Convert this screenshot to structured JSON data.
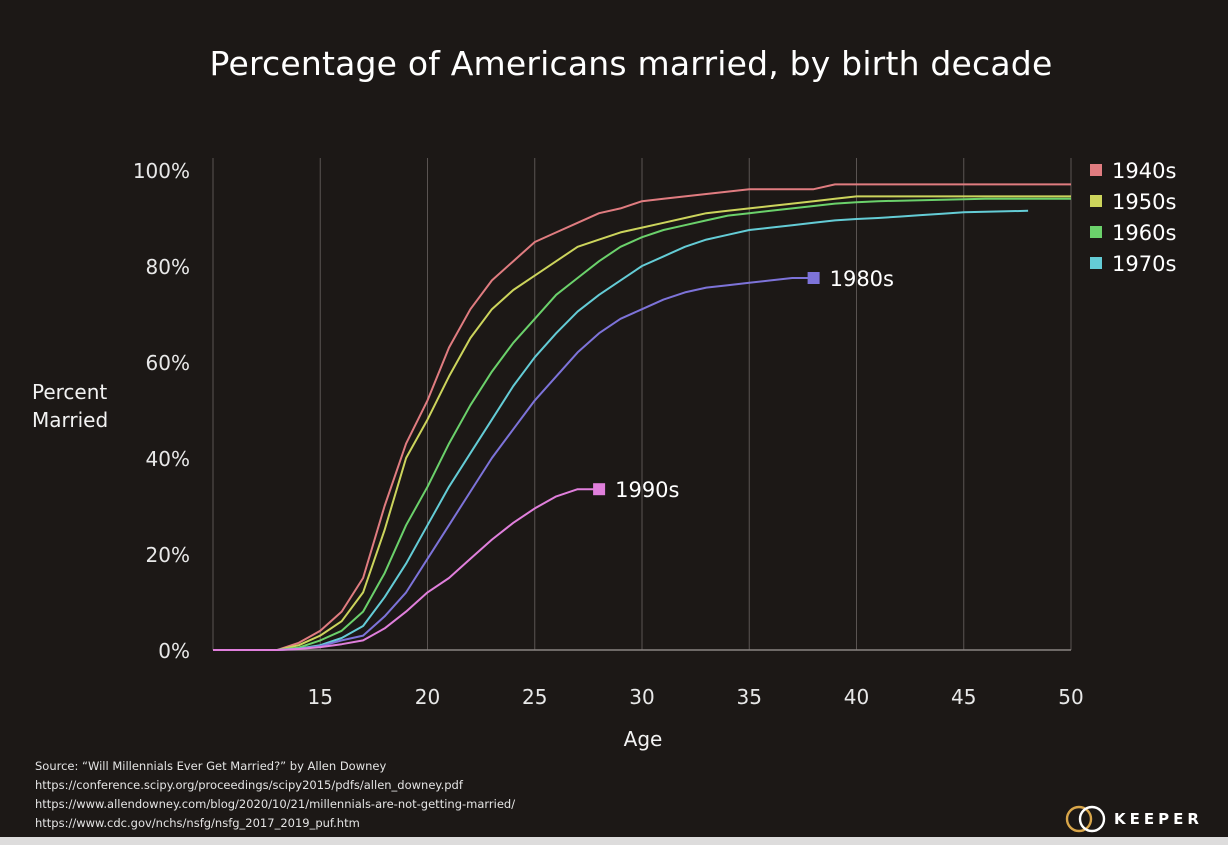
{
  "chart_data": {
    "type": "line",
    "title": "Percentage of Americans married, by birth decade",
    "xlabel": "Age",
    "ylabel": "Percent Married",
    "xlim": [
      10,
      50
    ],
    "ylim": [
      0,
      100
    ],
    "x_ticks": [
      "15",
      "20",
      "25",
      "30",
      "35",
      "40",
      "45",
      "50"
    ],
    "y_ticks": [
      "0%",
      "20%",
      "40%",
      "60%",
      "80%",
      "100%"
    ],
    "grid": "vertical",
    "legend_position": "right",
    "series": [
      {
        "name": "1940s",
        "color": "#e07c80",
        "x": [
          10,
          13,
          14,
          15,
          16,
          17,
          18,
          19,
          20,
          21,
          22,
          23,
          24,
          25,
          26,
          27,
          28,
          29,
          30,
          31,
          32,
          33,
          34,
          35,
          36,
          37,
          38,
          39,
          40,
          41,
          42,
          43,
          44,
          45,
          46,
          47,
          48,
          49,
          50
        ],
        "y": [
          0,
          0,
          1.5,
          4,
          8,
          15,
          30,
          43,
          52,
          63,
          71,
          77,
          81,
          85,
          87,
          89,
          91,
          92,
          93.5,
          94,
          94.5,
          95,
          95.5,
          96,
          96,
          96,
          96,
          97,
          97,
          97,
          97,
          97,
          97,
          97,
          97,
          97,
          97,
          97,
          97
        ]
      },
      {
        "name": "1950s",
        "color": "#ccd45c",
        "x": [
          10,
          13,
          14,
          15,
          16,
          17,
          18,
          19,
          20,
          21,
          22,
          23,
          24,
          25,
          26,
          27,
          28,
          29,
          30,
          31,
          32,
          33,
          34,
          35,
          36,
          37,
          38,
          39,
          40,
          41,
          42,
          43,
          44,
          45,
          46,
          47,
          48,
          49,
          50
        ],
        "y": [
          0,
          0,
          1,
          3,
          6,
          12,
          25,
          40,
          48,
          57,
          65,
          71,
          75,
          78,
          81,
          84,
          85.5,
          87,
          88,
          89,
          90,
          91,
          91.5,
          92,
          92.5,
          93,
          93.5,
          94,
          94.5,
          94.5,
          94.5,
          94.5,
          94.5,
          94.5,
          94.5,
          94.5,
          94.5,
          94.5,
          94.5
        ]
      },
      {
        "name": "1960s",
        "color": "#6bd16b",
        "x": [
          10,
          13,
          14,
          15,
          16,
          17,
          18,
          19,
          20,
          21,
          22,
          23,
          24,
          25,
          26,
          27,
          28,
          29,
          30,
          31,
          32,
          33,
          34,
          35,
          36,
          37,
          38,
          39,
          40,
          41,
          42,
          43,
          44,
          45,
          46,
          47,
          48,
          49,
          50
        ],
        "y": [
          0,
          0,
          0.5,
          2,
          4,
          8,
          16,
          26,
          34,
          43,
          51,
          58,
          64,
          69,
          74,
          77.5,
          81,
          84,
          86,
          87.5,
          88.5,
          89.5,
          90.5,
          91,
          91.5,
          92,
          92.5,
          93,
          93.3,
          93.5,
          93.6,
          93.7,
          93.8,
          93.9,
          94,
          94,
          94,
          94,
          94
        ]
      },
      {
        "name": "1970s",
        "color": "#64ccd6",
        "x": [
          10,
          13,
          14,
          15,
          16,
          17,
          18,
          19,
          20,
          21,
          22,
          23,
          24,
          25,
          26,
          27,
          28,
          29,
          30,
          31,
          32,
          33,
          34,
          35,
          36,
          37,
          38,
          39,
          40,
          41,
          42,
          43,
          44,
          45,
          46,
          47,
          48
        ],
        "y": [
          0,
          0,
          0.3,
          1,
          2.5,
          5,
          11,
          18,
          26,
          34,
          41,
          48,
          55,
          61,
          66,
          70.5,
          74,
          77,
          80,
          82,
          84,
          85.5,
          86.5,
          87.5,
          88,
          88.5,
          89,
          89.5,
          89.8,
          90,
          90.3,
          90.6,
          90.9,
          91.2,
          91.3,
          91.4,
          91.5
        ]
      },
      {
        "name": "1980s",
        "color": "#7d73d9",
        "x": [
          10,
          13,
          14,
          15,
          16,
          17,
          18,
          19,
          20,
          21,
          22,
          23,
          24,
          25,
          26,
          27,
          28,
          29,
          30,
          31,
          32,
          33,
          34,
          35,
          36,
          37,
          38
        ],
        "y": [
          0,
          0,
          0.2,
          0.8,
          2,
          3,
          7,
          12,
          19,
          26,
          33,
          40,
          46,
          52,
          57,
          62,
          66,
          69,
          71,
          73,
          74.5,
          75.5,
          76,
          76.5,
          77,
          77.5,
          77.5
        ]
      },
      {
        "name": "1990s",
        "color": "#e07fdc",
        "x": [
          10,
          13,
          14,
          15,
          16,
          17,
          18,
          19,
          20,
          21,
          22,
          23,
          24,
          25,
          26,
          27,
          28
        ],
        "y": [
          0,
          0,
          0.2,
          0.6,
          1.2,
          2,
          4.5,
          8,
          12,
          15,
          19,
          23,
          26.5,
          29.5,
          32,
          33.5,
          33.5
        ]
      }
    ],
    "end_labels": [
      "1980s",
      "1990s"
    ]
  },
  "ylabel_lines": [
    "Percent",
    "Married"
  ],
  "source_lines": [
    "Source: “Will Millennials Ever Get Married?” by Allen Downey",
    "https://conference.scipy.org/proceedings/scipy2015/pdfs/allen_downey.pdf",
    "https://www.allendowney.com/blog/2020/10/21/millennials-are-not-getting-married/",
    "https://www.cdc.gov/nchs/nsfg/nsfg_2017_2019_puf.htm"
  ],
  "logo_text": "KEEPER",
  "colors": {
    "background": "#1c1816",
    "grid": "#5a5452",
    "axis_text": "#e8e8e8"
  }
}
